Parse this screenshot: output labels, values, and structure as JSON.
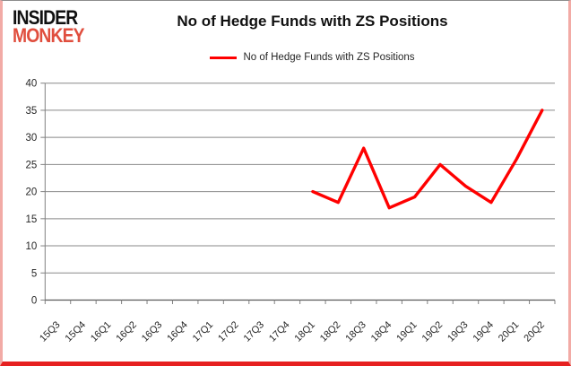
{
  "brand": {
    "line1": "INSIDER",
    "line2": "MONKEY"
  },
  "header": {
    "title": "No of Hedge Funds with ZS Positions"
  },
  "legend": {
    "label": "No of Hedge Funds with ZS Positions"
  },
  "colors": {
    "series_line": "#ff0000",
    "gridline": "#898989",
    "axis": "#595959",
    "tick": "#808080",
    "tick_label": "#262626",
    "logo_red": "#e04e3e",
    "frame_side_border": "#f2aba6",
    "frame_bottom_border": "#e62020"
  },
  "chart_data": {
    "type": "line",
    "title": "No of Hedge Funds with ZS Positions",
    "categories": [
      "15Q3",
      "15Q4",
      "16Q1",
      "16Q2",
      "16Q3",
      "16Q4",
      "17Q1",
      "17Q2",
      "17Q3",
      "17Q4",
      "18Q1",
      "18Q2",
      "18Q3",
      "18Q4",
      "19Q1",
      "19Q2",
      "19Q3",
      "19Q4",
      "20Q1",
      "20Q2"
    ],
    "series": [
      {
        "name": "No of Hedge Funds with ZS Positions",
        "color": "#ff0000",
        "values": [
          null,
          null,
          null,
          null,
          null,
          null,
          null,
          null,
          null,
          null,
          20,
          18,
          28,
          17,
          19,
          25,
          21,
          18,
          26,
          35
        ]
      }
    ],
    "ylim": [
      0,
      40
    ],
    "ytick_step": 5,
    "yticks": [
      0,
      5,
      10,
      15,
      20,
      25,
      30,
      35,
      40
    ],
    "grid": "horizontal",
    "legend_position": "top-center",
    "x_label_rotation": -45
  }
}
